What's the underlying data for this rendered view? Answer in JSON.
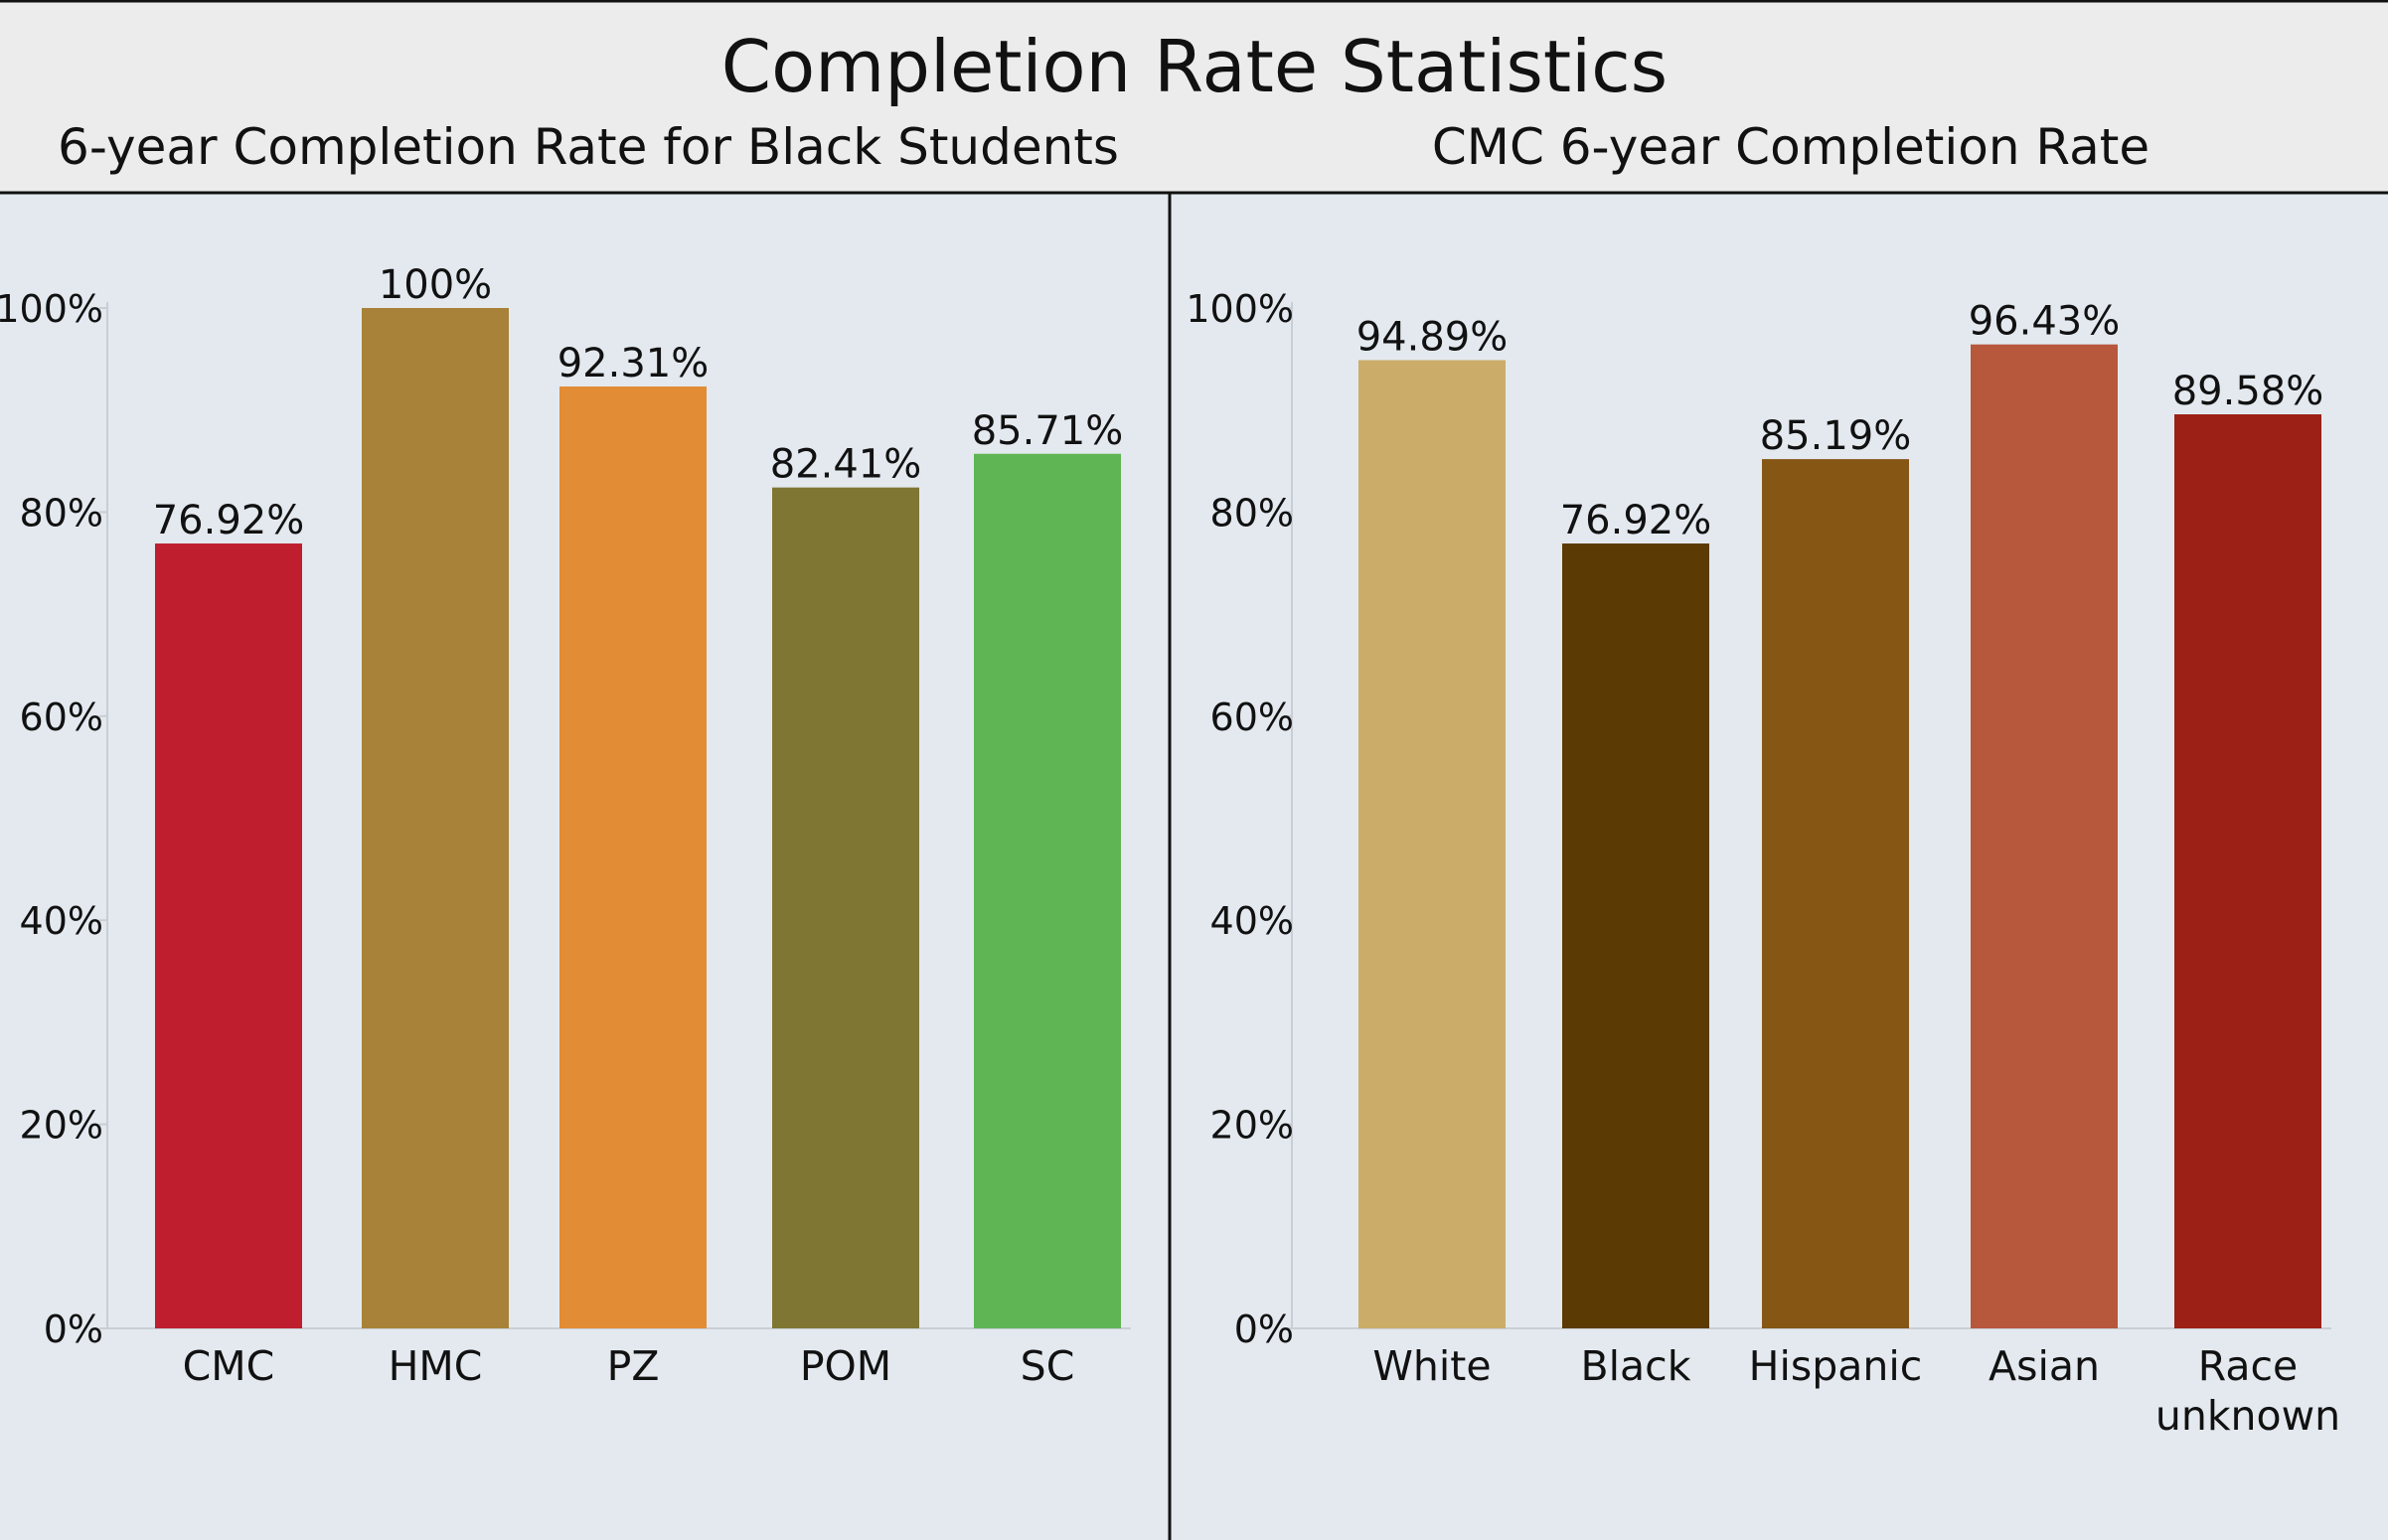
{
  "title": "Completion Rate Statistics",
  "chart_data": [
    {
      "type": "bar",
      "title": "6-year Completion Rate for Black Students",
      "categories": [
        "CMC",
        "HMC",
        "PZ",
        "POM",
        "SC"
      ],
      "values": [
        76.92,
        100,
        92.31,
        82.41,
        85.71
      ],
      "value_labels": [
        "76.92%",
        "100%",
        "92.31%",
        "82.41%",
        "85.71%"
      ],
      "colors": [
        "#bf1e2e",
        "#a88238",
        "#e28c36",
        "#7f7634",
        "#5fb554"
      ],
      "ylim": [
        0,
        100
      ],
      "yticks": [
        0,
        20,
        40,
        60,
        80,
        100
      ],
      "ytick_labels": [
        "0%",
        "20%",
        "40%",
        "60%",
        "80%",
        "100%"
      ],
      "grid": false
    },
    {
      "type": "bar",
      "title": "CMC 6-year Completion Rate",
      "categories": [
        "White",
        "Black",
        "Hispanic",
        "Asian",
        "Race unknown"
      ],
      "category_lines": [
        [
          "White"
        ],
        [
          "Black"
        ],
        [
          "Hispanic"
        ],
        [
          "Asian"
        ],
        [
          "Race",
          "unknown"
        ]
      ],
      "values": [
        94.89,
        76.92,
        85.19,
        96.43,
        89.58
      ],
      "value_labels": [
        "94.89%",
        "76.92%",
        "85.19%",
        "96.43%",
        "89.58%"
      ],
      "colors": [
        "#cbad69",
        "#5c3a03",
        "#855614",
        "#b7573c",
        "#9c2015"
      ],
      "ylim": [
        0,
        100
      ],
      "yticks": [
        0,
        20,
        40,
        60,
        80,
        100
      ],
      "ytick_labels": [
        "0%",
        "20%",
        "40%",
        "60%",
        "80%",
        "100%"
      ],
      "grid": false
    }
  ]
}
